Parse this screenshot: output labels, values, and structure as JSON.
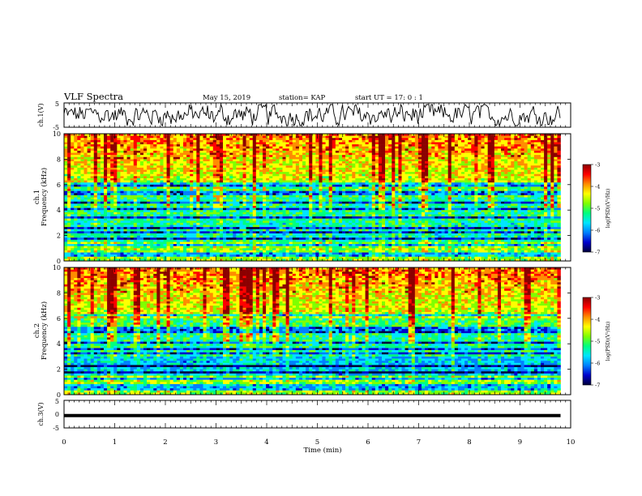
{
  "header": {
    "title": "VLF Spectra",
    "date": "May 15, 2019",
    "station": "station= KAP",
    "start": "start  UT  =   17: 0  : 1"
  },
  "colorbar": {
    "label": "log(PSD)(V²/Hz)",
    "ticks": [
      "-3",
      "-4",
      "-5",
      "-6",
      "-7"
    ],
    "stops": [
      "#8b0000",
      "#ff0000",
      "#ff8c00",
      "#ffff00",
      "#7fff00",
      "#00ff7f",
      "#00e5ff",
      "#0080ff",
      "#0000cd",
      "#00003a"
    ]
  },
  "chart_data": [
    {
      "type": "line",
      "panel": "ch1",
      "ylabel": "ch.1(V)",
      "ylim": [
        -5,
        5
      ],
      "yticks": [
        "5",
        "-5"
      ],
      "xlim": [
        0,
        10
      ],
      "trace_max_min": 9.8,
      "series": [
        {
          "name": "ch.1 waveform",
          "pattern": "noise around 0 V, amplitude about ±4 V"
        }
      ]
    },
    {
      "type": "heatmap",
      "panel": "ch1",
      "ylabel": "ch.1 Frequency (kHz)",
      "ylim": [
        0,
        10
      ],
      "yticks": [
        "0",
        "2",
        "4",
        "6",
        "8",
        "10"
      ],
      "xlim": [
        0,
        10
      ],
      "zlim": [
        -7,
        -3
      ],
      "bands_khz": [
        0.4,
        0.6,
        1.2,
        1.8,
        2.2,
        2.6,
        3.4,
        4.1,
        4.6,
        5.2,
        5.4,
        6.0
      ]
    },
    {
      "type": "heatmap",
      "panel": "ch2",
      "ylabel": "ch.2 Frequency (kHz)",
      "ylim": [
        0,
        10
      ],
      "yticks": [
        "0",
        "2",
        "4",
        "6",
        "8",
        "10"
      ],
      "xlim": [
        0,
        10
      ],
      "zlim": [
        -7,
        -3
      ],
      "bands_khz": [
        0.5,
        0.8,
        1.2,
        1.8,
        2.3,
        3.3,
        3.6,
        4.1,
        5.0,
        5.3,
        6.2
      ]
    },
    {
      "type": "line",
      "panel": "ch3",
      "ylabel": "ch.3(V)",
      "ylim": [
        -5,
        5
      ],
      "yticks": [
        "5",
        "0",
        "-5"
      ],
      "xlim": [
        0,
        10
      ],
      "series": [
        {
          "name": "ch.3",
          "value_v": -0.5
        }
      ]
    }
  ],
  "xaxis": {
    "label": "Time  (min)",
    "ticks": [
      "0",
      "1",
      "2",
      "3",
      "4",
      "5",
      "6",
      "7",
      "8",
      "9",
      "10"
    ]
  }
}
